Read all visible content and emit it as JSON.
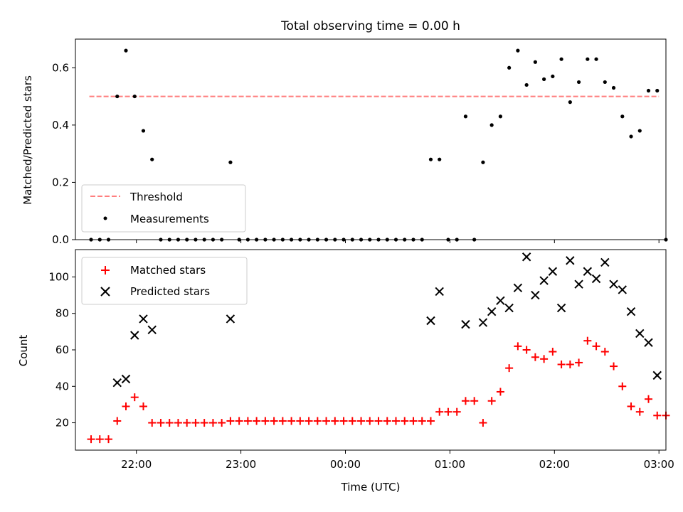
{
  "figure_title": "Total observing time = 0.00 h",
  "colors": {
    "threshold": "#ff7f7f",
    "measurements": "#000000",
    "matched": "#ff0000",
    "predicted": "#000000"
  },
  "chart_data": [
    {
      "type": "scatter",
      "title": "Total observing time = 0.00 h",
      "ylabel": "Matched/Predicted stars",
      "xlabel": "",
      "xlim": [
        "21:25",
        "03:04"
      ],
      "ylim": [
        0,
        0.7
      ],
      "yticks": [
        0.0,
        0.2,
        0.4,
        0.6
      ],
      "ytick_labels": [
        "0.0",
        "0.2",
        "0.4",
        "0.6"
      ],
      "legend": {
        "placement": "lower-left",
        "entries": [
          "Threshold",
          "Measurements"
        ]
      },
      "threshold": {
        "name": "Threshold",
        "y": 0.5,
        "x_range": [
          "21:33",
          "03:00"
        ],
        "style": "dashed"
      },
      "series": [
        {
          "name": "Measurements",
          "marker": "dot",
          "points": [
            [
              "21:34",
              0
            ],
            [
              "21:39",
              0
            ],
            [
              "21:44",
              0
            ],
            [
              "21:49",
              0.5
            ],
            [
              "21:54",
              0.66
            ],
            [
              "21:59",
              0.5
            ],
            [
              "22:04",
              0.38
            ],
            [
              "22:09",
              0.28
            ],
            [
              "22:14",
              0
            ],
            [
              "22:19",
              0
            ],
            [
              "22:24",
              0
            ],
            [
              "22:29",
              0
            ],
            [
              "22:34",
              0
            ],
            [
              "22:39",
              0
            ],
            [
              "22:44",
              0
            ],
            [
              "22:49",
              0
            ],
            [
              "22:54",
              0.27
            ],
            [
              "22:59",
              0
            ],
            [
              "23:04",
              0
            ],
            [
              "23:09",
              0
            ],
            [
              "23:14",
              0
            ],
            [
              "23:19",
              0
            ],
            [
              "23:24",
              0
            ],
            [
              "23:29",
              0
            ],
            [
              "23:34",
              0
            ],
            [
              "23:39",
              0
            ],
            [
              "23:44",
              0
            ],
            [
              "23:49",
              0
            ],
            [
              "23:54",
              0
            ],
            [
              "23:59",
              0
            ],
            [
              "00:04",
              0
            ],
            [
              "00:09",
              0
            ],
            [
              "00:14",
              0
            ],
            [
              "00:19",
              0
            ],
            [
              "00:24",
              0
            ],
            [
              "00:29",
              0
            ],
            [
              "00:34",
              0
            ],
            [
              "00:39",
              0
            ],
            [
              "00:44",
              0
            ],
            [
              "00:49",
              0.28
            ],
            [
              "00:54",
              0.28
            ],
            [
              "00:59",
              0
            ],
            [
              "01:04",
              0
            ],
            [
              "01:09",
              0.43
            ],
            [
              "01:14",
              0
            ],
            [
              "01:19",
              0.27
            ],
            [
              "01:24",
              0.4
            ],
            [
              "01:29",
              0.43
            ],
            [
              "01:34",
              0.6
            ],
            [
              "01:39",
              0.66
            ],
            [
              "01:44",
              0.54
            ],
            [
              "01:49",
              0.62
            ],
            [
              "01:54",
              0.56
            ],
            [
              "01:59",
              0.57
            ],
            [
              "02:04",
              0.63
            ],
            [
              "02:09",
              0.48
            ],
            [
              "02:14",
              0.55
            ],
            [
              "02:19",
              0.63
            ],
            [
              "02:24",
              0.63
            ],
            [
              "02:29",
              0.55
            ],
            [
              "02:34",
              0.53
            ],
            [
              "02:39",
              0.43
            ],
            [
              "02:44",
              0.36
            ],
            [
              "02:49",
              0.38
            ],
            [
              "02:54",
              0.52
            ],
            [
              "02:59",
              0.52
            ],
            [
              "03:04",
              0
            ]
          ]
        }
      ]
    },
    {
      "type": "scatter",
      "title": "",
      "ylabel": "Count",
      "xlabel": "Time (UTC)",
      "xlim": [
        "21:25",
        "03:04"
      ],
      "ylim": [
        5,
        115
      ],
      "yticks": [
        20,
        40,
        60,
        80,
        100
      ],
      "ytick_labels": [
        "20",
        "40",
        "60",
        "80",
        "100"
      ],
      "xticks": [
        "22:00",
        "23:00",
        "00:00",
        "01:00",
        "02:00",
        "03:00"
      ],
      "xtick_labels": [
        "22:00",
        "23:00",
        "00:00",
        "01:00",
        "02:00",
        "03:00"
      ],
      "legend": {
        "placement": "upper-left",
        "entries": [
          "Matched stars",
          "Predicted stars"
        ]
      },
      "series": [
        {
          "name": "Matched stars",
          "marker": "plus",
          "points": [
            [
              "21:34",
              11
            ],
            [
              "21:39",
              11
            ],
            [
              "21:44",
              11
            ],
            [
              "21:49",
              21
            ],
            [
              "21:54",
              29
            ],
            [
              "21:59",
              34
            ],
            [
              "22:04",
              29
            ],
            [
              "22:09",
              20
            ],
            [
              "22:14",
              20
            ],
            [
              "22:19",
              20
            ],
            [
              "22:24",
              20
            ],
            [
              "22:29",
              20
            ],
            [
              "22:34",
              20
            ],
            [
              "22:39",
              20
            ],
            [
              "22:44",
              20
            ],
            [
              "22:49",
              20
            ],
            [
              "22:54",
              21
            ],
            [
              "22:59",
              21
            ],
            [
              "23:04",
              21
            ],
            [
              "23:09",
              21
            ],
            [
              "23:14",
              21
            ],
            [
              "23:19",
              21
            ],
            [
              "23:24",
              21
            ],
            [
              "23:29",
              21
            ],
            [
              "23:34",
              21
            ],
            [
              "23:39",
              21
            ],
            [
              "23:44",
              21
            ],
            [
              "23:49",
              21
            ],
            [
              "23:54",
              21
            ],
            [
              "23:59",
              21
            ],
            [
              "00:04",
              21
            ],
            [
              "00:09",
              21
            ],
            [
              "00:14",
              21
            ],
            [
              "00:19",
              21
            ],
            [
              "00:24",
              21
            ],
            [
              "00:29",
              21
            ],
            [
              "00:34",
              21
            ],
            [
              "00:39",
              21
            ],
            [
              "00:44",
              21
            ],
            [
              "00:49",
              21
            ],
            [
              "00:54",
              26
            ],
            [
              "00:59",
              26
            ],
            [
              "01:04",
              26
            ],
            [
              "01:09",
              32
            ],
            [
              "01:14",
              32
            ],
            [
              "01:19",
              20
            ],
            [
              "01:24",
              32
            ],
            [
              "01:29",
              37
            ],
            [
              "01:34",
              50
            ],
            [
              "01:39",
              62
            ],
            [
              "01:44",
              60
            ],
            [
              "01:49",
              56
            ],
            [
              "01:54",
              55
            ],
            [
              "01:59",
              59
            ],
            [
              "02:04",
              52
            ],
            [
              "02:09",
              52
            ],
            [
              "02:14",
              53
            ],
            [
              "02:19",
              65
            ],
            [
              "02:24",
              62
            ],
            [
              "02:29",
              59
            ],
            [
              "02:34",
              51
            ],
            [
              "02:39",
              40
            ],
            [
              "02:44",
              29
            ],
            [
              "02:49",
              26
            ],
            [
              "02:54",
              33
            ],
            [
              "02:59",
              24
            ],
            [
              "03:04",
              24
            ]
          ]
        },
        {
          "name": "Predicted stars",
          "marker": "x",
          "points": [
            [
              "21:49",
              42
            ],
            [
              "21:54",
              44
            ],
            [
              "21:59",
              68
            ],
            [
              "22:04",
              77
            ],
            [
              "22:09",
              71
            ],
            [
              "22:54",
              77
            ],
            [
              "00:49",
              76
            ],
            [
              "00:54",
              92
            ],
            [
              "01:09",
              74
            ],
            [
              "01:19",
              75
            ],
            [
              "01:24",
              81
            ],
            [
              "01:29",
              87
            ],
            [
              "01:34",
              83
            ],
            [
              "01:39",
              94
            ],
            [
              "01:44",
              111
            ],
            [
              "01:49",
              90
            ],
            [
              "01:54",
              98
            ],
            [
              "01:59",
              103
            ],
            [
              "02:04",
              83
            ],
            [
              "02:09",
              109
            ],
            [
              "02:14",
              96
            ],
            [
              "02:19",
              103
            ],
            [
              "02:24",
              99
            ],
            [
              "02:29",
              108
            ],
            [
              "02:34",
              96
            ],
            [
              "02:39",
              93
            ],
            [
              "02:44",
              81
            ],
            [
              "02:49",
              69
            ],
            [
              "02:54",
              64
            ],
            [
              "02:59",
              46
            ]
          ]
        }
      ]
    }
  ]
}
